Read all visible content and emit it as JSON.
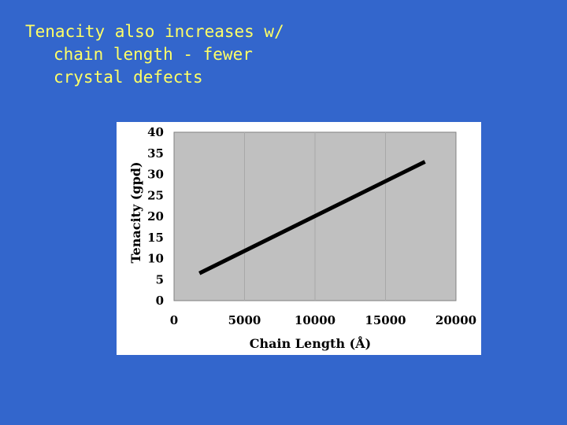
{
  "slide": {
    "title_lines": [
      "Tenacity also increases w/",
      "chain length - fewer",
      "crystal defects"
    ]
  },
  "colors": {
    "background": "#3366cc",
    "title_text": "#ffff66",
    "chart_panel": "#ffffff",
    "plot_area": "#c0c0c0",
    "line": "#000000"
  },
  "chart_data": {
    "type": "line",
    "x": [
      1800,
      17800
    ],
    "y": [
      6.5,
      33
    ],
    "xlabel": "Chain Length (Å)",
    "ylabel": "Tenacity (gpd)",
    "xlim": [
      0,
      20000
    ],
    "ylim": [
      0,
      40
    ],
    "xticks": [
      0,
      5000,
      10000,
      15000,
      20000
    ],
    "yticks": [
      0,
      5,
      10,
      15,
      20,
      25,
      30,
      35,
      40
    ],
    "grid": true,
    "legend": "none"
  }
}
